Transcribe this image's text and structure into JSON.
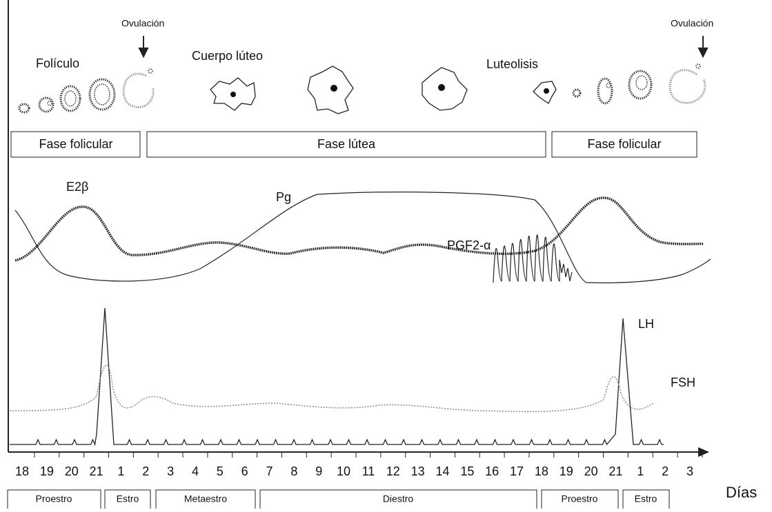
{
  "labels": {
    "ovulation_1": "Ovulación",
    "ovulation_2": "Ovulación",
    "follicle": "Folículo",
    "corpus_luteum": "Cuerpo lúteo",
    "luteolysis": "Luteolisis",
    "e2": "E2β",
    "pg": "Pg",
    "pgf2": "PGF2-α",
    "lh": "LH",
    "fsh": "FSH",
    "axis": "Días"
  },
  "phases": [
    "Fase folicular",
    "Fase lútea",
    "Fase folicular"
  ],
  "days": [
    "18",
    "19",
    "20",
    "21",
    "1",
    "2",
    "3",
    "4",
    "5",
    "6",
    "7",
    "8",
    "9",
    "10",
    "11",
    "12",
    "13",
    "14",
    "15",
    "16",
    "17",
    "18",
    "19",
    "20",
    "21",
    "1",
    "2",
    "3"
  ],
  "stages": [
    "Proestro",
    "Estro",
    "Metaestro",
    "Diestro",
    "Proestro",
    "Estro"
  ]
}
